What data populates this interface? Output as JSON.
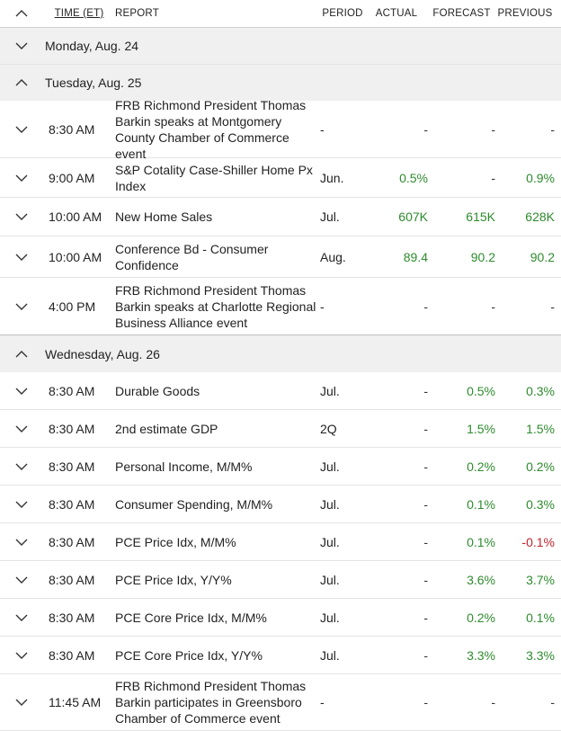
{
  "header": {
    "time": "TIME (ET)",
    "report": "REPORT",
    "period": "PERIOD",
    "actual": "ACTUAL",
    "forecast": "FORECAST",
    "previous": "PREVIOUS"
  },
  "days": [
    {
      "label": "Monday, Aug. 24",
      "expanded": false
    },
    {
      "label": "Tuesday, Aug. 25",
      "expanded": true
    },
    {
      "label": "Wednesday, Aug. 26",
      "expanded": true
    }
  ],
  "tuesday_rows": [
    {
      "time": "8:30 AM",
      "report": "FRB Richmond President Thomas Barkin speaks at Montgomery County Chamber of Commerce event",
      "period": "-",
      "actual": "-",
      "forecast": "-",
      "previous": "-"
    },
    {
      "time": "9:00 AM",
      "report": "S&P Cotality Case-Shiller Home Px Index",
      "period": "Jun.",
      "actual": "0.5%",
      "forecast": "-",
      "previous": "0.9%"
    },
    {
      "time": "10:00 AM",
      "report": "New Home Sales",
      "period": "Jul.",
      "actual": "607K",
      "forecast": "615K",
      "previous": "628K"
    },
    {
      "time": "10:00 AM",
      "report": "Conference Bd - Consumer Confidence",
      "period": "Aug.",
      "actual": "89.4",
      "forecast": "90.2",
      "previous": "90.2"
    },
    {
      "time": "4:00 PM",
      "report": "FRB Richmond President Thomas Barkin speaks at Charlotte Regional Business Alliance event",
      "period": "-",
      "actual": "-",
      "forecast": "-",
      "previous": "-"
    }
  ],
  "wednesday_rows": [
    {
      "time": "8:30 AM",
      "report": "Durable Goods",
      "period": "Jul.",
      "actual": "-",
      "forecast": "0.5%",
      "previous": "0.3%"
    },
    {
      "time": "8:30 AM",
      "report": "2nd estimate GDP",
      "period": "2Q",
      "actual": "-",
      "forecast": "1.5%",
      "previous": "1.5%"
    },
    {
      "time": "8:30 AM",
      "report": "Personal Income, M/M%",
      "period": "Jul.",
      "actual": "-",
      "forecast": "0.2%",
      "previous": "0.2%"
    },
    {
      "time": "8:30 AM",
      "report": "Consumer Spending, M/M%",
      "period": "Jul.",
      "actual": "-",
      "forecast": "0.1%",
      "previous": "0.3%"
    },
    {
      "time": "8:30 AM",
      "report": "PCE Price Idx, M/M%",
      "period": "Jul.",
      "actual": "-",
      "forecast": "0.1%",
      "previous": "-0.1%"
    },
    {
      "time": "8:30 AM",
      "report": "PCE Price Idx, Y/Y%",
      "period": "Jul.",
      "actual": "-",
      "forecast": "3.6%",
      "previous": "3.7%"
    },
    {
      "time": "8:30 AM",
      "report": "PCE Core Price Idx, M/M%",
      "period": "Jul.",
      "actual": "-",
      "forecast": "0.2%",
      "previous": "0.1%"
    },
    {
      "time": "8:30 AM",
      "report": "PCE Core Price Idx, Y/Y%",
      "period": "Jul.",
      "actual": "-",
      "forecast": "3.3%",
      "previous": "3.3%"
    },
    {
      "time": "11:45 AM",
      "report": "FRB Richmond President Thomas Barkin participates in Greensboro Chamber of Commerce event",
      "period": "-",
      "actual": "-",
      "forecast": "-",
      "previous": "-"
    }
  ],
  "colors": {
    "positive": "#2e8b2e",
    "negative": "#c0242c",
    "day_bg": "#f0f0f0"
  },
  "icons": {
    "collapsed": "chevron-down-icon",
    "expanded": "chevron-up-icon"
  }
}
